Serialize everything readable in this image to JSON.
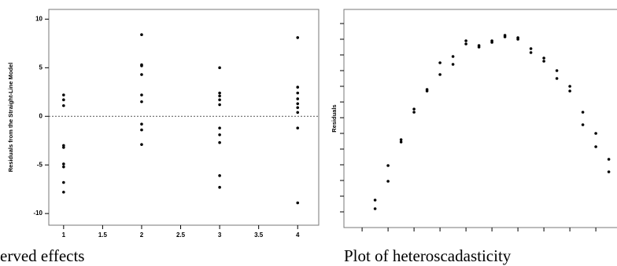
{
  "chart_data": [
    {
      "type": "scatter",
      "caption": "erved effects",
      "y_label": "Residuals from the Straight-Line Model",
      "x": [
        1,
        1,
        1,
        1,
        1,
        1,
        1,
        1,
        1,
        2,
        2,
        2,
        2,
        2,
        2,
        2,
        2,
        2,
        3,
        3,
        3,
        3,
        3,
        3,
        3,
        3,
        3,
        3,
        4,
        4,
        4,
        4,
        4,
        4,
        4,
        4,
        4
      ],
      "y": [
        2.2,
        1.7,
        1.1,
        -3.0,
        -3.2,
        -4.9,
        -5.2,
        -6.8,
        -7.8,
        8.4,
        5.3,
        5.2,
        4.3,
        2.2,
        1.5,
        -0.8,
        -1.4,
        -2.9,
        5.0,
        2.4,
        2.1,
        1.7,
        1.2,
        -1.2,
        -1.9,
        -2.7,
        -6.1,
        -7.3,
        8.1,
        3.0,
        2.4,
        1.8,
        1.3,
        0.9,
        0.4,
        -1.2,
        -8.9
      ],
      "color": "#000000",
      "xlim": [
        0.81,
        4.27
      ],
      "xticks": [
        1,
        1.5,
        2,
        2.5,
        3,
        3.5,
        4
      ],
      "ylim": [
        -11.2,
        11
      ],
      "yticks": [
        10,
        5,
        0,
        -5,
        -10
      ],
      "reference_line": 0,
      "tick_labels": true
    },
    {
      "type": "scatter",
      "caption": "Plot of heteroscadasticity",
      "y_label": "Residuals",
      "x": [
        1,
        1,
        2,
        2,
        3,
        3,
        4,
        4,
        5,
        5,
        6,
        6,
        7,
        7,
        8,
        8,
        9,
        9,
        10,
        10,
        11,
        11,
        12,
        12,
        13,
        13,
        14,
        14,
        15,
        15,
        16,
        16,
        17,
        17,
        18,
        18,
        19,
        19,
        20,
        20
      ],
      "y": [
        -1.05,
        -1.16,
        -0.61,
        -0.81,
        -0.28,
        -0.31,
        0.11,
        0.07,
        0.36,
        0.34,
        0.7,
        0.55,
        0.78,
        0.68,
        0.98,
        0.94,
        0.92,
        0.9,
        0.98,
        0.96,
        1.05,
        1.03,
        1.02,
        1.0,
        0.88,
        0.83,
        0.76,
        0.72,
        0.6,
        0.5,
        0.4,
        0.34,
        0.07,
        -0.09,
        -0.2,
        -0.37,
        -0.53,
        -0.69,
        -1.07,
        -1.12
      ],
      "color": "#000000",
      "xlim": [
        -1.4,
        20.6
      ],
      "xticks": [
        0,
        2,
        4,
        6,
        8,
        10,
        12,
        14,
        16,
        18,
        20
      ],
      "ylim": [
        -1.4,
        1.38
      ],
      "yticks": [
        -1.2,
        -1,
        -0.8,
        -0.6,
        -0.4,
        -0.2,
        0,
        0.2,
        0.4,
        0.6,
        0.8,
        1,
        1.2
      ],
      "tick_labels": false
    }
  ]
}
